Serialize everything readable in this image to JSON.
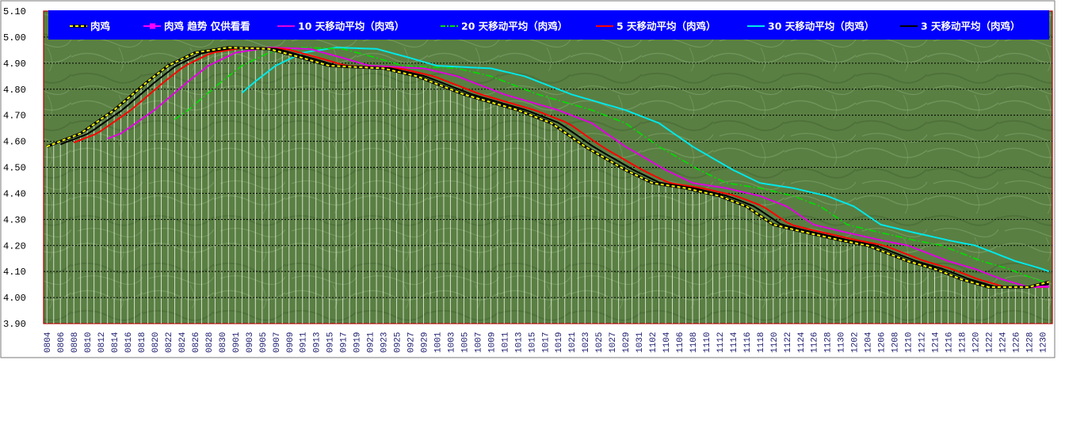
{
  "chart_data": {
    "type": "line",
    "title": "",
    "xlabel": "",
    "ylabel": "",
    "ylim": [
      3.9,
      5.1
    ],
    "y_ticks": [
      "3.90",
      "4.00",
      "4.10",
      "4.20",
      "4.30",
      "4.40",
      "4.50",
      "4.60",
      "4.70",
      "4.80",
      "4.90",
      "5.00",
      "5.10"
    ],
    "grid": "horizontal dotted",
    "legend_placement": "top",
    "background": "green textured",
    "x_start_month": 8,
    "x_start_day": 4,
    "x_count": 150,
    "x_label_step": 2,
    "series": [
      {
        "name": "肉鸡",
        "color": "#ffff00",
        "style": "dash-on-black",
        "role": "price",
        "anchors": [
          [
            0,
            4.58
          ],
          [
            5,
            4.63
          ],
          [
            10,
            4.72
          ],
          [
            15,
            4.83
          ],
          [
            18,
            4.89
          ],
          [
            22,
            4.94
          ],
          [
            27,
            4.96
          ],
          [
            33,
            4.955
          ],
          [
            38,
            4.92
          ],
          [
            42,
            4.89
          ],
          [
            50,
            4.88
          ],
          [
            55,
            4.85
          ],
          [
            62,
            4.78
          ],
          [
            70,
            4.72
          ],
          [
            75,
            4.67
          ],
          [
            80,
            4.58
          ],
          [
            86,
            4.49
          ],
          [
            90,
            4.44
          ],
          [
            95,
            4.42
          ],
          [
            100,
            4.39
          ],
          [
            104,
            4.35
          ],
          [
            108,
            4.28
          ],
          [
            112,
            4.255
          ],
          [
            118,
            4.22
          ],
          [
            122,
            4.2
          ],
          [
            128,
            4.14
          ],
          [
            132,
            4.11
          ],
          [
            136,
            4.07
          ],
          [
            140,
            4.04
          ],
          [
            146,
            4.04
          ],
          [
            149,
            4.06
          ],
          [
            155,
            4.1
          ],
          [
            161,
            4.14
          ]
        ]
      },
      {
        "name": "肉鸡 趋势 仅供看看",
        "color": "#ff00ff",
        "style": "trend",
        "role": "trend",
        "anchors": [
          [
            140,
            4.04
          ],
          [
            146,
            4.04
          ],
          [
            151,
            4.045
          ],
          [
            155,
            4.06
          ],
          [
            160,
            4.08
          ],
          [
            166,
            4.09
          ]
        ]
      },
      {
        "name": "10 天移动平均（肉鸡）",
        "color": "#e000e0",
        "style": "solid",
        "width": 2,
        "lag": 6,
        "start": 9
      },
      {
        "name": "20 天移动平均（肉鸡）",
        "color": "#00e000",
        "style": "dashdot",
        "width": 1.6,
        "lag": 11,
        "start": 19
      },
      {
        "name": "5 天移动平均（肉鸡）",
        "color": "#ff0000",
        "style": "solid",
        "width": 2,
        "lag": 2.5,
        "start": 4
      },
      {
        "name": "30 天移动平均（肉鸡）",
        "color": "#00e8e8",
        "style": "solid",
        "width": 2,
        "lag": 16,
        "start": 29
      },
      {
        "name": "3 天移动平均（肉鸡）",
        "color": "#000000",
        "style": "solid",
        "width": 2,
        "lag": 1.2,
        "start": 2
      }
    ]
  }
}
